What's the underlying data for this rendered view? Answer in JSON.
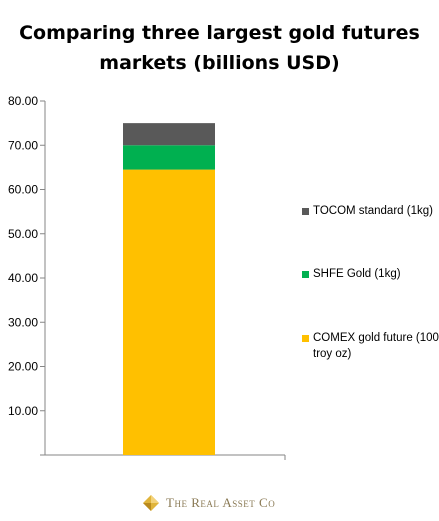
{
  "title_lines": [
    "Comparing three largest gold futures",
    "markets (billions USD)"
  ],
  "footer": {
    "brand": "The Real Asset Co",
    "logo_icon": "gold-diamond-logo-icon"
  },
  "chart_data": {
    "type": "bar",
    "stacked": true,
    "categories": [
      ""
    ],
    "ylim": [
      0,
      80
    ],
    "y_ticks": [
      0,
      10,
      20,
      30,
      40,
      50,
      60,
      70,
      80
    ],
    "y_tick_labels": [
      "",
      "10.00",
      "20.00",
      "30.00",
      "40.00",
      "50.00",
      "60.00",
      "70.00",
      "80.00"
    ],
    "series": [
      {
        "name": "COMEX gold future (100 troy oz)",
        "values": [
          64.5
        ],
        "color": "#ffc000"
      },
      {
        "name": "SHFE Gold (1kg)",
        "values": [
          5.5
        ],
        "color": "#00b050"
      },
      {
        "name": "TOCOM standard (1kg)",
        "values": [
          5.0
        ],
        "color": "#595959"
      }
    ],
    "legend_position": "right",
    "grid": false
  }
}
